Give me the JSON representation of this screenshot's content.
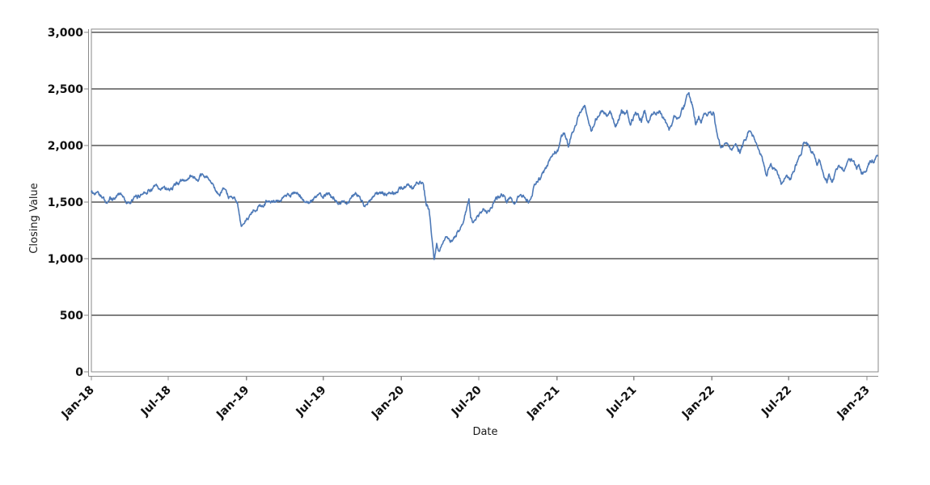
{
  "chart_data": {
    "type": "line",
    "title": "",
    "xlabel": "Date",
    "ylabel": "Closing Value",
    "grid": "horizontal",
    "legend": "none",
    "ylim": [
      0,
      3030
    ],
    "x_range": [
      "2018-01-01",
      "2023-01-26"
    ],
    "y_ticks": [
      {
        "value": 0,
        "label": "0"
      },
      {
        "value": 500,
        "label": "500"
      },
      {
        "value": 1000,
        "label": "1,000"
      },
      {
        "value": 1500,
        "label": "1,500"
      },
      {
        "value": 2000,
        "label": "2,000"
      },
      {
        "value": 2500,
        "label": "2,500"
      },
      {
        "value": 3000,
        "label": "3,000"
      }
    ],
    "x_ticks": [
      {
        "date": "2018-01-01",
        "label": "Jan-18"
      },
      {
        "date": "2018-07-01",
        "label": "Jul-18"
      },
      {
        "date": "2019-01-01",
        "label": "Jan-19"
      },
      {
        "date": "2019-07-01",
        "label": "Jul-19"
      },
      {
        "date": "2020-01-01",
        "label": "Jan-20"
      },
      {
        "date": "2020-07-01",
        "label": "Jul-20"
      },
      {
        "date": "2021-01-01",
        "label": "Jan-21"
      },
      {
        "date": "2021-07-01",
        "label": "Jul-21"
      },
      {
        "date": "2022-01-01",
        "label": "Jan-22"
      },
      {
        "date": "2022-07-01",
        "label": "Jul-22"
      },
      {
        "date": "2023-01-01",
        "label": "Jan-23"
      }
    ],
    "colors": {
      "line": "#4d79b7",
      "gridline": "#000000",
      "frame": "#8a8a8a",
      "tick": "#8a8a8a",
      "text": "#111111"
    },
    "series": [
      {
        "name": "Closing Value",
        "color": "#4d79b7",
        "points": [
          [
            "2018-01-01",
            1590
          ],
          [
            "2018-01-08",
            1570
          ],
          [
            "2018-01-16",
            1605
          ],
          [
            "2018-01-26",
            1555
          ],
          [
            "2018-02-06",
            1480
          ],
          [
            "2018-02-13",
            1535
          ],
          [
            "2018-02-21",
            1510
          ],
          [
            "2018-03-02",
            1560
          ],
          [
            "2018-03-12",
            1585
          ],
          [
            "2018-03-23",
            1510
          ],
          [
            "2018-04-03",
            1485
          ],
          [
            "2018-04-13",
            1530
          ],
          [
            "2018-04-25",
            1560
          ],
          [
            "2018-05-08",
            1600
          ],
          [
            "2018-05-21",
            1615
          ],
          [
            "2018-06-01",
            1640
          ],
          [
            "2018-06-12",
            1605
          ],
          [
            "2018-06-22",
            1630
          ],
          [
            "2018-07-04",
            1620
          ],
          [
            "2018-07-16",
            1650
          ],
          [
            "2018-07-26",
            1670
          ],
          [
            "2018-08-07",
            1690
          ],
          [
            "2018-08-18",
            1705
          ],
          [
            "2018-08-29",
            1740
          ],
          [
            "2018-09-07",
            1700
          ],
          [
            "2018-09-20",
            1730
          ],
          [
            "2018-10-01",
            1715
          ],
          [
            "2018-10-11",
            1650
          ],
          [
            "2018-10-22",
            1600
          ],
          [
            "2018-10-30",
            1560
          ],
          [
            "2018-11-08",
            1605
          ],
          [
            "2018-11-20",
            1530
          ],
          [
            "2018-12-03",
            1560
          ],
          [
            "2018-12-11",
            1480
          ],
          [
            "2018-12-20",
            1270
          ],
          [
            "2018-12-28",
            1320
          ],
          [
            "2019-01-08",
            1390
          ],
          [
            "2019-01-18",
            1440
          ],
          [
            "2019-02-01",
            1460
          ],
          [
            "2019-02-15",
            1490
          ],
          [
            "2019-03-01",
            1520
          ],
          [
            "2019-03-12",
            1500
          ],
          [
            "2019-03-25",
            1530
          ],
          [
            "2019-04-08",
            1560
          ],
          [
            "2019-04-22",
            1570
          ],
          [
            "2019-05-06",
            1555
          ],
          [
            "2019-05-16",
            1510
          ],
          [
            "2019-05-29",
            1490
          ],
          [
            "2019-06-10",
            1530
          ],
          [
            "2019-06-20",
            1550
          ],
          [
            "2019-07-01",
            1560
          ],
          [
            "2019-07-12",
            1570
          ],
          [
            "2019-07-25",
            1545
          ],
          [
            "2019-08-05",
            1480
          ],
          [
            "2019-08-15",
            1515
          ],
          [
            "2019-08-26",
            1495
          ],
          [
            "2019-09-06",
            1540
          ],
          [
            "2019-09-16",
            1570
          ],
          [
            "2019-10-01",
            1505
          ],
          [
            "2019-10-08",
            1480
          ],
          [
            "2019-10-18",
            1530
          ],
          [
            "2019-11-01",
            1560
          ],
          [
            "2019-11-12",
            1580
          ],
          [
            "2019-11-25",
            1560
          ],
          [
            "2019-12-05",
            1590
          ],
          [
            "2019-12-16",
            1570
          ],
          [
            "2019-12-28",
            1620
          ],
          [
            "2020-01-08",
            1635
          ],
          [
            "2020-01-17",
            1665
          ],
          [
            "2020-01-28",
            1620
          ],
          [
            "2020-02-06",
            1665
          ],
          [
            "2020-02-14",
            1695
          ],
          [
            "2020-02-21",
            1680
          ],
          [
            "2020-02-28",
            1490
          ],
          [
            "2020-03-06",
            1430
          ],
          [
            "2020-03-12",
            1200
          ],
          [
            "2020-03-18",
            1000
          ],
          [
            "2020-03-24",
            1130
          ],
          [
            "2020-03-31",
            1060
          ],
          [
            "2020-04-08",
            1140
          ],
          [
            "2020-04-16",
            1190
          ],
          [
            "2020-04-24",
            1150
          ],
          [
            "2020-05-04",
            1170
          ],
          [
            "2020-05-13",
            1230
          ],
          [
            "2020-05-21",
            1280
          ],
          [
            "2020-06-01",
            1420
          ],
          [
            "2020-06-08",
            1550
          ],
          [
            "2020-06-12",
            1380
          ],
          [
            "2020-06-16",
            1330
          ],
          [
            "2020-06-24",
            1365
          ],
          [
            "2020-07-03",
            1385
          ],
          [
            "2020-07-13",
            1440
          ],
          [
            "2020-07-23",
            1420
          ],
          [
            "2020-08-03",
            1480
          ],
          [
            "2020-08-12",
            1540
          ],
          [
            "2020-08-28",
            1575
          ],
          [
            "2020-09-04",
            1505
          ],
          [
            "2020-09-14",
            1525
          ],
          [
            "2020-09-23",
            1460
          ],
          [
            "2020-10-02",
            1540
          ],
          [
            "2020-10-09",
            1585
          ],
          [
            "2020-10-16",
            1550
          ],
          [
            "2020-10-28",
            1510
          ],
          [
            "2020-11-04",
            1580
          ],
          [
            "2020-11-09",
            1650
          ],
          [
            "2020-11-17",
            1670
          ],
          [
            "2020-11-24",
            1700
          ],
          [
            "2020-12-04",
            1790
          ],
          [
            "2020-12-14",
            1860
          ],
          [
            "2020-12-22",
            1920
          ],
          [
            "2021-01-04",
            1980
          ],
          [
            "2021-01-12",
            2060
          ],
          [
            "2021-01-20",
            2090
          ],
          [
            "2021-01-28",
            2000
          ],
          [
            "2021-02-05",
            2120
          ],
          [
            "2021-02-12",
            2180
          ],
          [
            "2021-02-19",
            2250
          ],
          [
            "2021-03-01",
            2310
          ],
          [
            "2021-03-08",
            2345
          ],
          [
            "2021-03-16",
            2250
          ],
          [
            "2021-03-24",
            2130
          ],
          [
            "2021-04-01",
            2220
          ],
          [
            "2021-04-09",
            2270
          ],
          [
            "2021-04-16",
            2300
          ],
          [
            "2021-04-23",
            2280
          ],
          [
            "2021-04-30",
            2250
          ],
          [
            "2021-05-07",
            2300
          ],
          [
            "2021-05-13",
            2230
          ],
          [
            "2021-05-19",
            2160
          ],
          [
            "2021-05-26",
            2220
          ],
          [
            "2021-06-02",
            2320
          ],
          [
            "2021-06-09",
            2280
          ],
          [
            "2021-06-15",
            2300
          ],
          [
            "2021-06-23",
            2180
          ],
          [
            "2021-07-01",
            2260
          ],
          [
            "2021-07-12",
            2300
          ],
          [
            "2021-07-19",
            2220
          ],
          [
            "2021-07-27",
            2300
          ],
          [
            "2021-08-05",
            2200
          ],
          [
            "2021-08-13",
            2260
          ],
          [
            "2021-08-23",
            2280
          ],
          [
            "2021-09-02",
            2300
          ],
          [
            "2021-09-10",
            2240
          ],
          [
            "2021-09-22",
            2130
          ],
          [
            "2021-09-28",
            2180
          ],
          [
            "2021-10-04",
            2250
          ],
          [
            "2021-10-12",
            2220
          ],
          [
            "2021-10-20",
            2280
          ],
          [
            "2021-10-26",
            2320
          ],
          [
            "2021-11-01",
            2400
          ],
          [
            "2021-11-08",
            2450
          ],
          [
            "2021-11-15",
            2380
          ],
          [
            "2021-11-24",
            2170
          ],
          [
            "2021-12-01",
            2250
          ],
          [
            "2021-12-07",
            2200
          ],
          [
            "2021-12-14",
            2280
          ],
          [
            "2021-12-21",
            2250
          ],
          [
            "2021-12-29",
            2300
          ],
          [
            "2022-01-06",
            2290
          ],
          [
            "2022-01-13",
            2100
          ],
          [
            "2022-01-22",
            1960
          ],
          [
            "2022-02-03",
            2060
          ],
          [
            "2022-02-15",
            1960
          ],
          [
            "2022-02-25",
            2010
          ],
          [
            "2022-03-08",
            1950
          ],
          [
            "2022-03-18",
            2040
          ],
          [
            "2022-03-29",
            2120
          ],
          [
            "2022-04-08",
            2080
          ],
          [
            "2022-04-20",
            1990
          ],
          [
            "2022-04-29",
            1900
          ],
          [
            "2022-05-10",
            1740
          ],
          [
            "2022-05-20",
            1830
          ],
          [
            "2022-05-31",
            1790
          ],
          [
            "2022-06-13",
            1660
          ],
          [
            "2022-06-24",
            1730
          ],
          [
            "2022-07-05",
            1700
          ],
          [
            "2022-07-19",
            1840
          ],
          [
            "2022-08-05",
            2010
          ],
          [
            "2022-08-15",
            2020
          ],
          [
            "2022-08-25",
            1940
          ],
          [
            "2022-09-06",
            1830
          ],
          [
            "2022-09-12",
            1875
          ],
          [
            "2022-09-22",
            1750
          ],
          [
            "2022-09-29",
            1690
          ],
          [
            "2022-10-04",
            1745
          ],
          [
            "2022-10-12",
            1675
          ],
          [
            "2022-10-21",
            1780
          ],
          [
            "2022-11-01",
            1820
          ],
          [
            "2022-11-08",
            1780
          ],
          [
            "2022-11-16",
            1855
          ],
          [
            "2022-11-25",
            1875
          ],
          [
            "2022-12-02",
            1850
          ],
          [
            "2022-12-08",
            1780
          ],
          [
            "2022-12-13",
            1825
          ],
          [
            "2022-12-20",
            1745
          ],
          [
            "2022-12-28",
            1785
          ],
          [
            "2023-01-04",
            1835
          ],
          [
            "2023-01-11",
            1865
          ],
          [
            "2023-01-18",
            1855
          ],
          [
            "2023-01-26",
            1905
          ]
        ]
      }
    ]
  }
}
